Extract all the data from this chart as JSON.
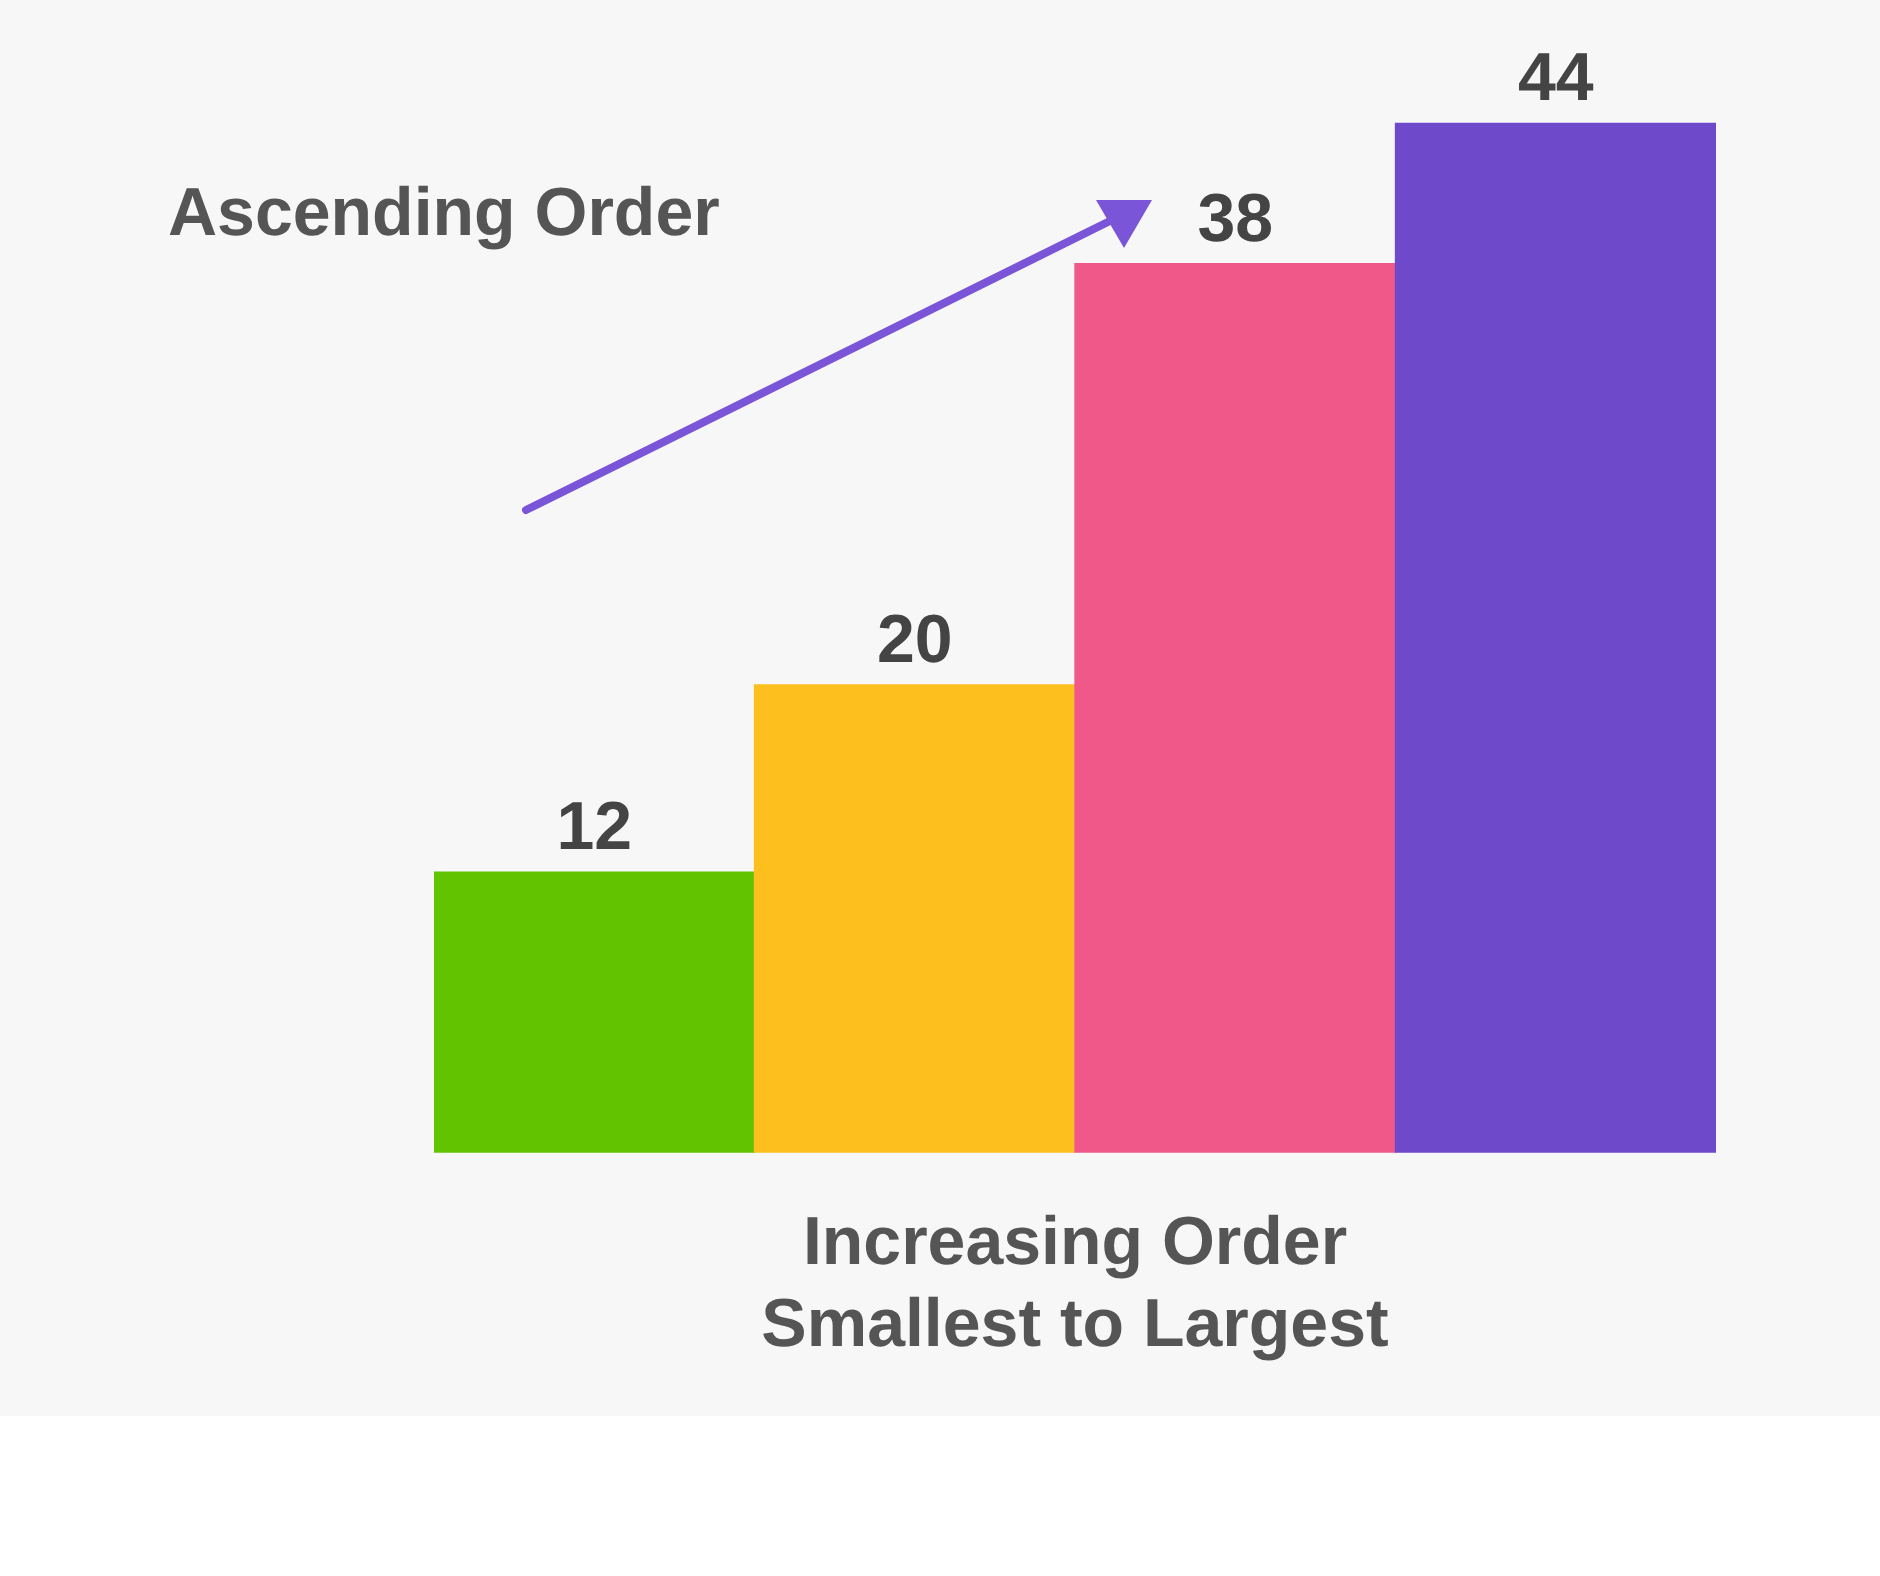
{
  "chart_data": {
    "type": "bar",
    "categories": [
      null,
      null,
      null,
      null
    ],
    "values": [
      12,
      20,
      38,
      44
    ],
    "colors": [
      "#62c400",
      "#fdbf1e",
      "#f0588a",
      "#6e4acb"
    ],
    "data_labels": true,
    "xlabel": "Increasing Order\nSmallest to Largest",
    "annotations": [
      "Ascending Order"
    ],
    "grid": false,
    "legend": false
  }
}
